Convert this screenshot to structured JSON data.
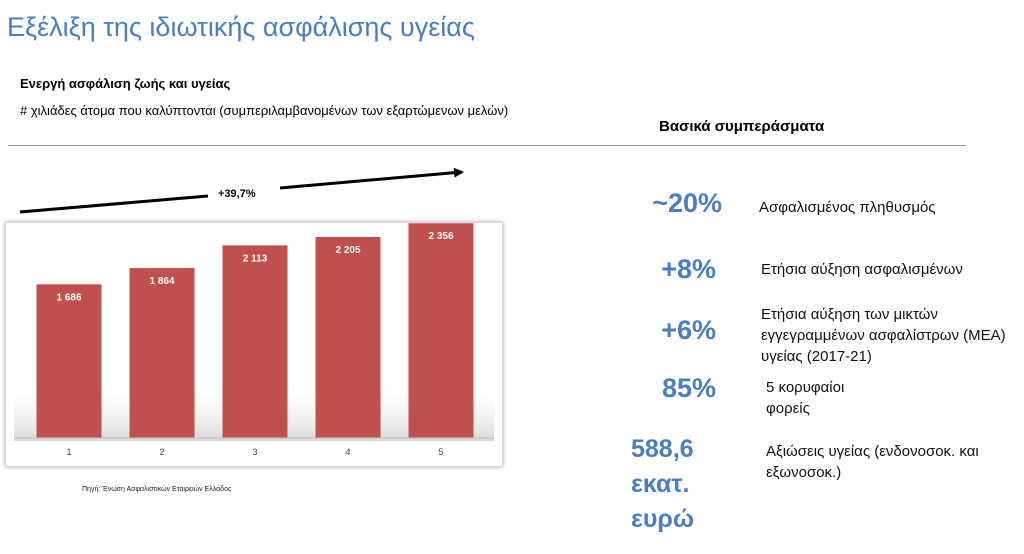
{
  "title": "Εξέλιξη της ιδιωτικής ασφάλισης υγείας",
  "chart_heading": "Ενεργή ασφάλιση ζωής και υγείας",
  "chart_subheading": "# χιλιάδες άτομα που καλύπτονται (συμπεριλαμβανομένων των εξαρτώμενων μελών)",
  "growth_label": "+39,7%",
  "source": "Πηγή: Ένωση Ασφαλιστικών Εταιρειών Ελλάδος",
  "conclusions_title": "Βασικά συμπεράσματα",
  "conclusions": [
    {
      "value": "~20%",
      "text": "Ασφαλισμένος πληθυσμός"
    },
    {
      "value": "+8%",
      "text": "Ετήσια αύξηση ασφαλισμένων"
    },
    {
      "value": "+6%",
      "text": "Ετήσια αύξηση των μικτών εγγεγραμμένων ασφαλίστρων (ΜΕΑ) υγείας (2017-21)"
    },
    {
      "value": "85%",
      "text": "5 κορυφαίοι φορείς"
    },
    {
      "value": "588,6 εκατ. ευρώ",
      "text": "Αξιώσεις υγείας (ενδονοσοκ. και εξωνοσοκ.)"
    }
  ],
  "colors": {
    "accent": "#4a7ec0",
    "bar": "#c0504d",
    "bar_dark": "#9e3a37"
  },
  "chart_data": {
    "type": "bar",
    "categories": [
      "1",
      "2",
      "3",
      "4",
      "5"
    ],
    "values": [
      1686,
      1864,
      2113,
      2205,
      2356
    ],
    "value_labels": [
      "1 686",
      "1 864",
      "2 113",
      "2 205",
      "2 356"
    ],
    "title": "",
    "xlabel": "",
    "ylabel": "",
    "ylim": [
      0,
      2600
    ],
    "grid": false,
    "legend": "none"
  }
}
